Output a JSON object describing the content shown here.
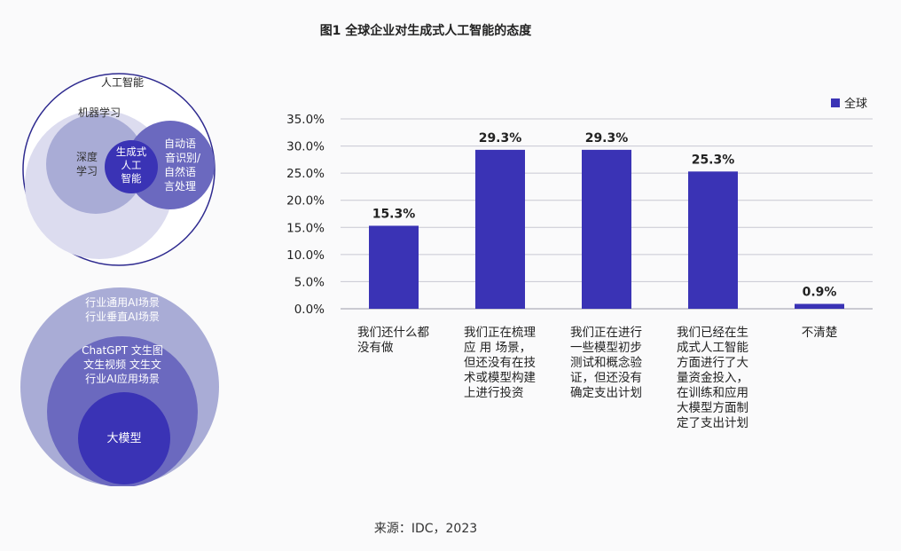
{
  "title": "图1 全球企业对生成式人工智能的态度",
  "source": "来源：IDC，2023",
  "venn_ai": {
    "outer": "人工智能",
    "ml": "机器学习",
    "dl_line1": "深度",
    "dl_line2": "学习",
    "genai_line1": "生成式",
    "genai_line2": "人工",
    "genai_line3": "智能",
    "nlp_line1": "自动语",
    "nlp_line2": "音识别/",
    "nlp_line3": "自然语",
    "nlp_line4": "言处理"
  },
  "venn_model": {
    "outer_line1": "行业通用AI场景",
    "outer_line2": "行业垂直AI场景",
    "mid_line1": "ChatGPT 文生图",
    "mid_line2": "文生视频 文生文",
    "mid_line3": "行业AI应用场景",
    "inner": "大模型"
  },
  "colors": {
    "bar": "#3a33b5",
    "ring": "#2e2a8f",
    "light": "#dcdcef",
    "mid": "#a9acd6",
    "dark": "#6b69bf",
    "deep": "#3a33b5"
  },
  "chart_data": {
    "type": "bar",
    "categories": [
      "我们还什么都没有做",
      "我们正在梳理 应 用 场景，但还没有在技术或模型构建上进行投资",
      "我们正在进行一些模型初步测试和概念验证，但还没有确定支出计划",
      "我们已经在生成式人工智能方面进行了大量资金投入，在训练和应用大模型方面制定了支出计划",
      "不清楚"
    ],
    "series": [
      {
        "name": "全球",
        "values": [
          15.3,
          29.3,
          29.3,
          25.3,
          0.9
        ]
      }
    ],
    "value_labels": [
      "15.3%",
      "29.3%",
      "29.3%",
      "25.3%",
      "0.9%"
    ],
    "yticks": [
      "0.0%",
      "5.0%",
      "10.0%",
      "15.0%",
      "20.0%",
      "25.0%",
      "30.0%",
      "35.0%"
    ],
    "ylim": [
      0,
      35
    ],
    "legend": "全球",
    "grid": true
  }
}
